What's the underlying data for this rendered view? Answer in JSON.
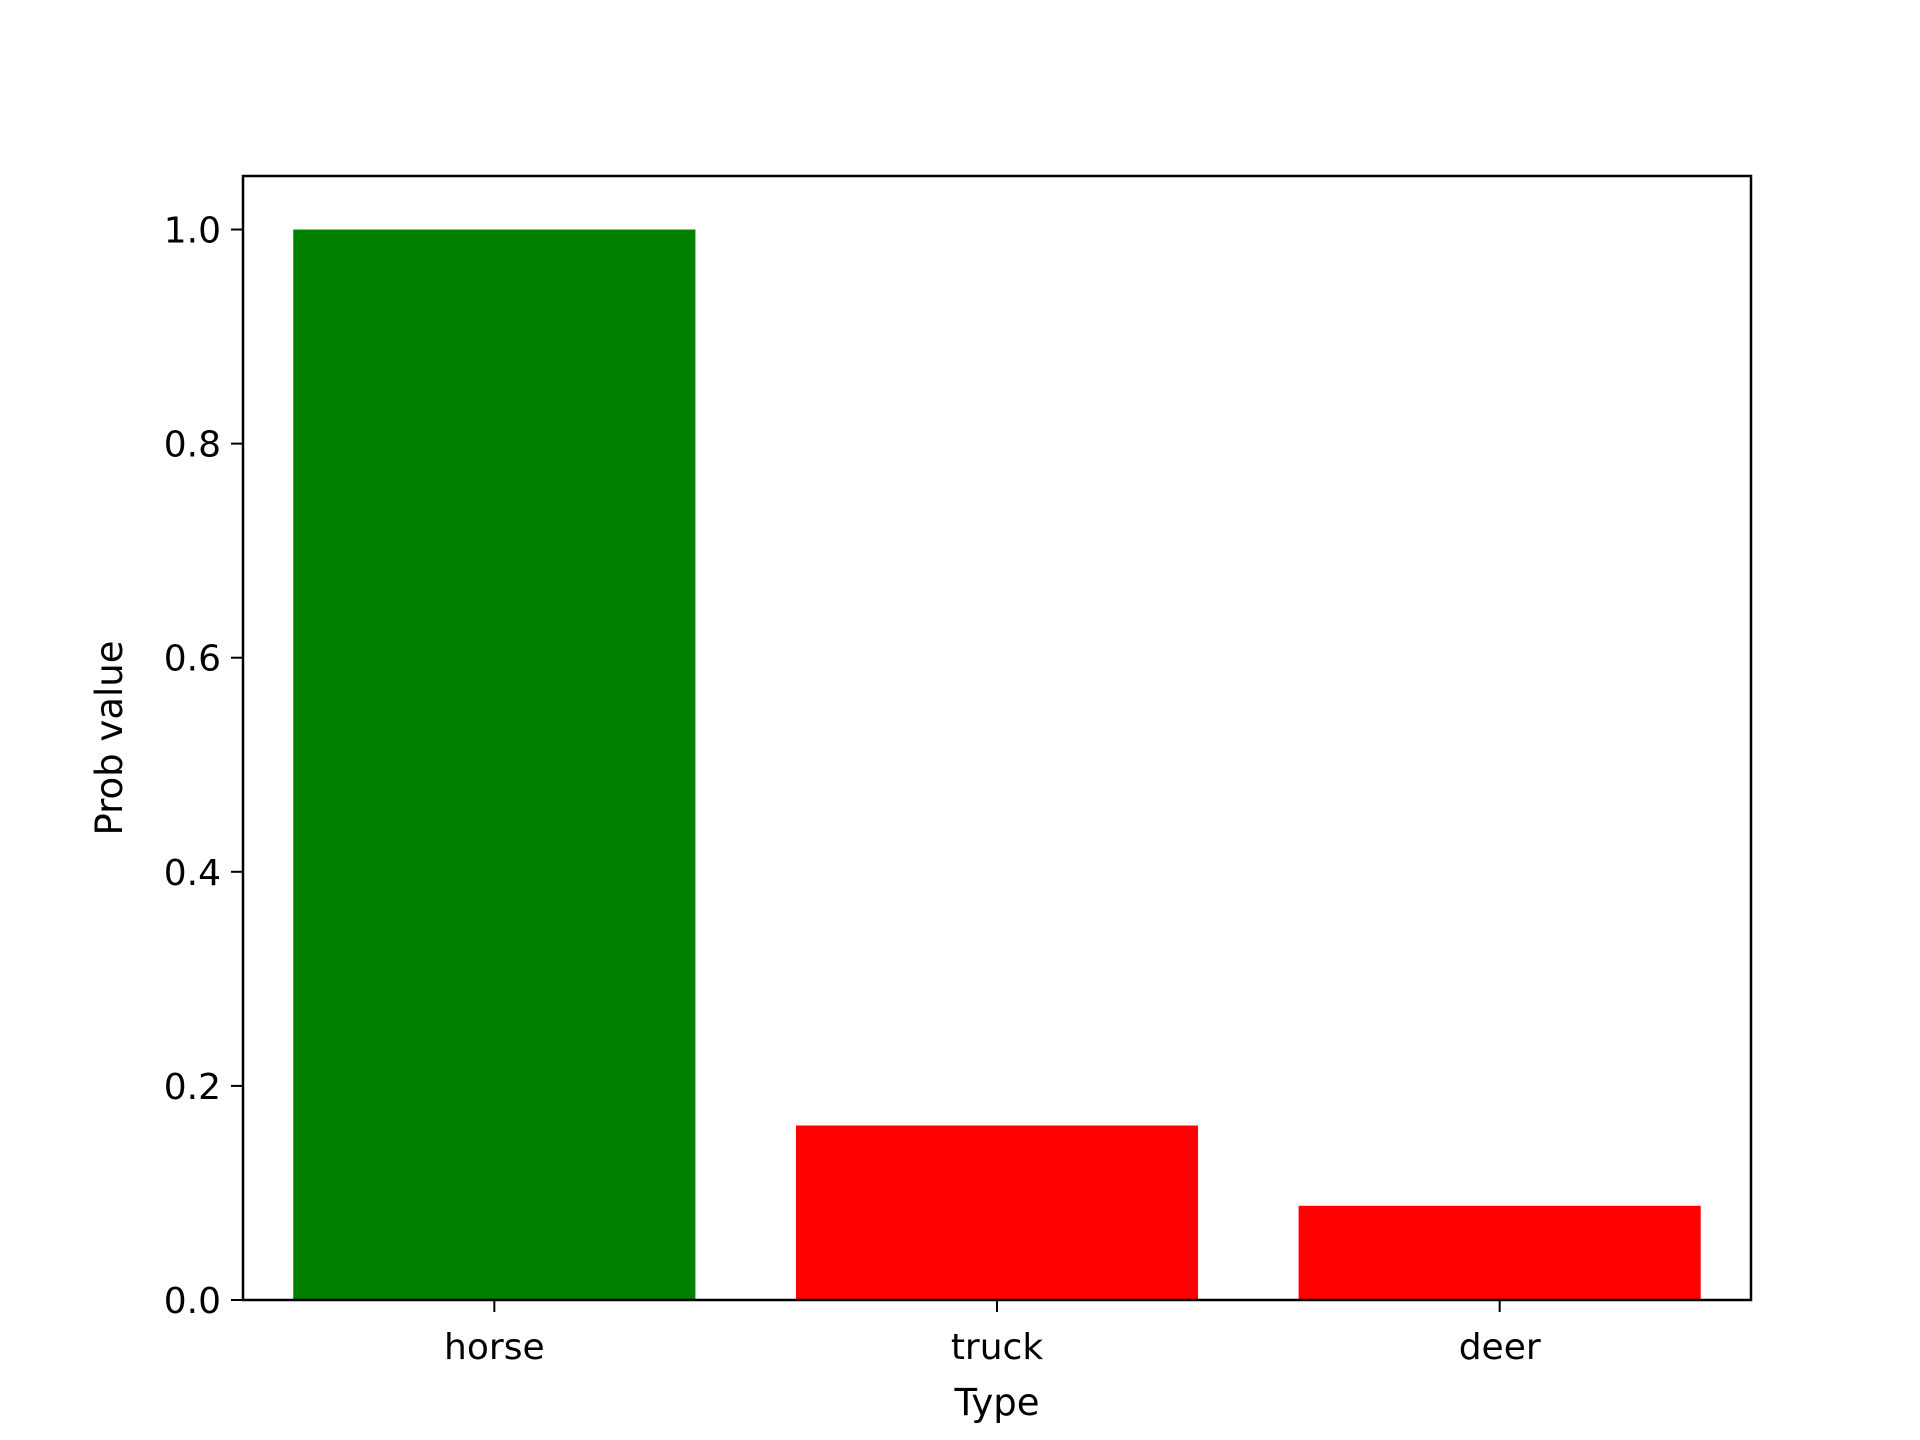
{
  "chart_data": {
    "type": "bar",
    "title": "",
    "xlabel": "Type",
    "ylabel": "Prob value",
    "categories": [
      "horse",
      "truck",
      "deer"
    ],
    "values": [
      1.0,
      0.163,
      0.088
    ],
    "bar_colors": [
      "#008000",
      "#ff0000",
      "#ff0000"
    ],
    "ylim": [
      0,
      1.05
    ],
    "yticks": [
      0.0,
      0.2,
      0.4,
      0.6,
      0.8,
      1.0
    ],
    "ytick_labels": [
      "0.0",
      "0.2",
      "0.4",
      "0.6",
      "0.8",
      "1.0"
    ],
    "grid": false,
    "legend": "none"
  }
}
